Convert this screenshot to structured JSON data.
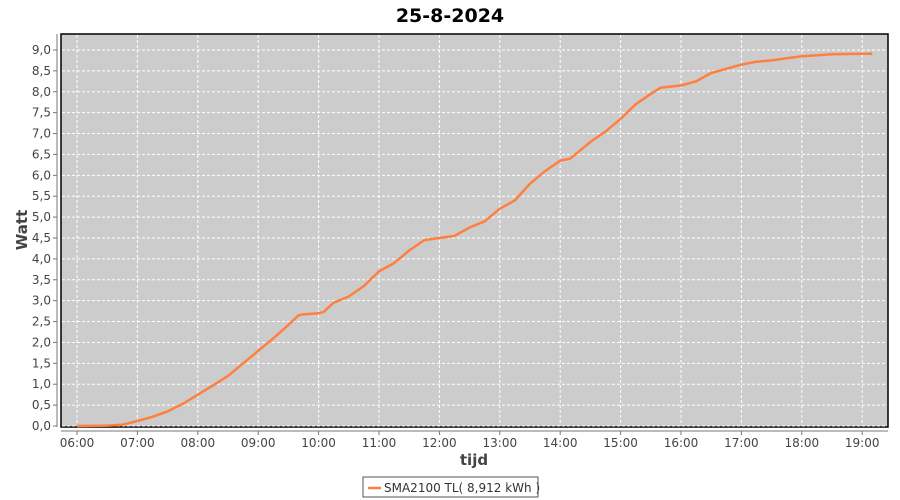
{
  "chart_data": {
    "type": "line",
    "title": "25-8-2024",
    "xlabel": "tijd",
    "ylabel": "Watt",
    "xlim": [
      "05:45",
      "19:25"
    ],
    "ylim": [
      0,
      9.35
    ],
    "x_ticks": [
      "06:00",
      "07:00",
      "08:00",
      "09:00",
      "10:00",
      "11:00",
      "12:00",
      "13:00",
      "14:00",
      "15:00",
      "16:00",
      "17:00",
      "18:00",
      "19:00"
    ],
    "y_ticks": [
      "0,0",
      "0,5",
      "1,0",
      "1,5",
      "2,0",
      "2,5",
      "3,0",
      "3,5",
      "4,0",
      "4,5",
      "5,0",
      "5,5",
      "6,0",
      "6,5",
      "7,0",
      "7,5",
      "8,0",
      "8,5",
      "9,0"
    ],
    "grid": true,
    "legend_position": "bottom",
    "colors": {
      "plot_bg": "#cccccc",
      "series": "#ff7f3f",
      "grid": "#ffffff"
    },
    "series": [
      {
        "name": "SMA2100 TL( 8,912 kWh )",
        "x": [
          "06:00",
          "06:30",
          "06:45",
          "07:00",
          "07:15",
          "07:30",
          "07:45",
          "08:00",
          "08:15",
          "08:30",
          "08:45",
          "09:00",
          "09:15",
          "09:30",
          "09:40",
          "09:45",
          "10:00",
          "10:05",
          "10:15",
          "10:30",
          "10:45",
          "11:00",
          "11:15",
          "11:30",
          "11:45",
          "12:00",
          "12:15",
          "12:30",
          "12:45",
          "13:00",
          "13:15",
          "13:30",
          "13:45",
          "14:00",
          "14:10",
          "14:30",
          "14:45",
          "15:00",
          "15:15",
          "15:30",
          "15:40",
          "16:00",
          "16:15",
          "16:30",
          "16:45",
          "17:00",
          "17:15",
          "17:30",
          "17:45",
          "18:00",
          "18:30",
          "19:00",
          "19:10"
        ],
        "y": [
          0.0,
          0.01,
          0.03,
          0.12,
          0.22,
          0.35,
          0.53,
          0.75,
          0.97,
          1.2,
          1.5,
          1.8,
          2.1,
          2.42,
          2.65,
          2.67,
          2.7,
          2.73,
          2.95,
          3.1,
          3.35,
          3.7,
          3.9,
          4.2,
          4.45,
          4.5,
          4.55,
          4.75,
          4.9,
          5.2,
          5.4,
          5.8,
          6.1,
          6.35,
          6.4,
          6.8,
          7.05,
          7.35,
          7.7,
          7.95,
          8.1,
          8.15,
          8.25,
          8.45,
          8.55,
          8.65,
          8.72,
          8.75,
          8.8,
          8.85,
          8.9,
          8.91,
          8.912
        ]
      }
    ]
  }
}
